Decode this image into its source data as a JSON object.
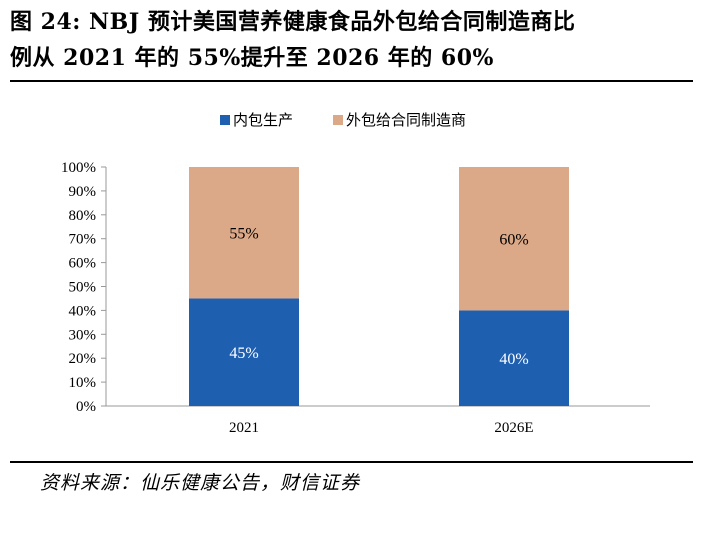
{
  "header": {
    "title_line1": "图 24: NBJ 预计美国营养健康食品外包给合同制造商比",
    "title_line2": "例从 2021 年的 55%提升至 2026 年的 60%"
  },
  "footer": {
    "source": "资料来源：仙乐健康公告，财信证券"
  },
  "colors": {
    "in_house": "#1f5fb0",
    "outsourced": "#dca988",
    "axis": "#999999"
  },
  "chart_data": {
    "type": "bar",
    "stacked": true,
    "categories": [
      "2021",
      "2026E"
    ],
    "series": [
      {
        "name": "内包生产",
        "values": [
          45,
          40
        ],
        "labels": [
          "45%",
          "40%"
        ]
      },
      {
        "name": "外包给合同制造商",
        "values": [
          55,
          60
        ],
        "labels": [
          "55%",
          "60%"
        ]
      }
    ],
    "ylim": [
      0,
      100
    ],
    "yticks": [
      "0%",
      "10%",
      "20%",
      "30%",
      "40%",
      "50%",
      "60%",
      "70%",
      "80%",
      "90%",
      "100%"
    ],
    "legend_position": "top-center",
    "grid": false
  }
}
